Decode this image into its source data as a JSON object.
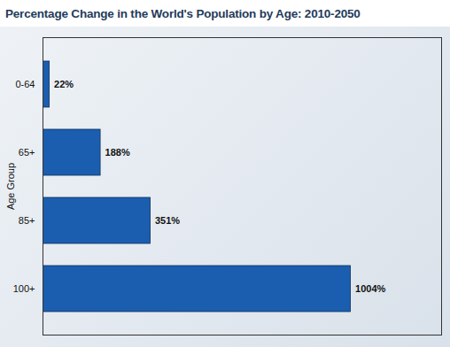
{
  "chart_data": {
    "type": "bar",
    "title": "Percentage Change in the World's Population by Age: 2010-2050",
    "y_label": "Age Group",
    "categories": [
      "0-64",
      "65+",
      "85+",
      "100+"
    ],
    "values": [
      22,
      188,
      351,
      1004
    ],
    "value_labels": [
      "22%",
      "188%",
      "351%",
      "1004%"
    ],
    "color": "#1b5eb0",
    "xlim": [
      0,
      1300
    ],
    "orientation": "horizontal",
    "data_labels": true,
    "tick_labels": "y",
    "grid": false
  }
}
